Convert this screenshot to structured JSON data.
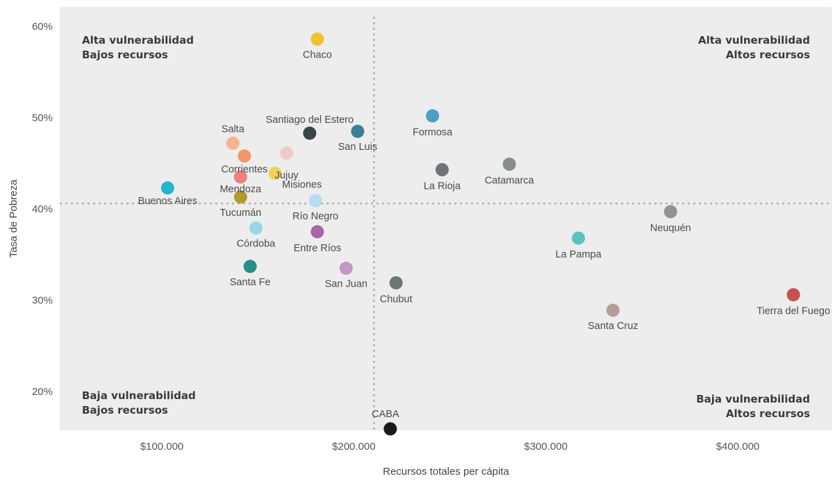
{
  "chart_data": {
    "type": "scatter",
    "xlabel": "Recursos totales per cápita",
    "ylabel": "Tasa de Pobreza",
    "xlim": [
      50000,
      450000
    ],
    "ylim": [
      15,
      62
    ],
    "x_ticks": [
      100000,
      200000,
      300000,
      400000
    ],
    "x_tick_labels": [
      "$100.000",
      "$200.000",
      "$300.000",
      "$400.000"
    ],
    "y_ticks": [
      20,
      30,
      40,
      50,
      60
    ],
    "y_tick_labels": [
      "20%",
      "30%",
      "40%",
      "50%",
      "60%"
    ],
    "grid": false,
    "reference_lines": {
      "x": 210500,
      "y": 40.6
    },
    "quadrant_labels": {
      "top_left": [
        "Alta vulnerabilidad",
        "Bajos recursos"
      ],
      "top_right": [
        "Alta vulnerabilidad",
        "Altos recursos"
      ],
      "bottom_left": [
        "Baja vulnerabilidad",
        "Bajos recursos"
      ],
      "bottom_right": [
        "Baja vulnerabilidad",
        "Altos recursos"
      ]
    },
    "points": [
      {
        "name": "Chaco",
        "x": 181000,
        "y": 58.6,
        "color": "#f2c12e"
      },
      {
        "name": "Santiago del Estero",
        "x": 177000,
        "y": 48.3,
        "color": "#3b4446"
      },
      {
        "name": "San Luis",
        "x": 202000,
        "y": 48.5,
        "color": "#3b7f99"
      },
      {
        "name": "Formosa",
        "x": 241000,
        "y": 50.2,
        "color": "#4b9fc4"
      },
      {
        "name": "Salta",
        "x": 137000,
        "y": 47.2,
        "color": "#f5b393"
      },
      {
        "name": "Corrientes",
        "x": 143000,
        "y": 45.8,
        "color": "#f3956a"
      },
      {
        "name": "Jujuy",
        "x": 165000,
        "y": 46.1,
        "color": "#efcaca"
      },
      {
        "name": "Misiones",
        "x": 159000,
        "y": 43.9,
        "color": "#f3d05a"
      },
      {
        "name": "Mendoza",
        "x": 141000,
        "y": 43.5,
        "color": "#f08080"
      },
      {
        "name": "La Rioja",
        "x": 246000,
        "y": 44.3,
        "color": "#6e7577"
      },
      {
        "name": "Catamarca",
        "x": 281000,
        "y": 44.9,
        "color": "#878d8e"
      },
      {
        "name": "Buenos Aires",
        "x": 103000,
        "y": 42.3,
        "color": "#24b6d1"
      },
      {
        "name": "Tucumán",
        "x": 141000,
        "y": 41.3,
        "color": "#b39a2d"
      },
      {
        "name": "Río Negro",
        "x": 180000,
        "y": 40.9,
        "color": "#b5dcf0"
      },
      {
        "name": "Neuquén",
        "x": 365000,
        "y": 39.7,
        "color": "#8f9596"
      },
      {
        "name": "Córdoba",
        "x": 149000,
        "y": 37.9,
        "color": "#96d6ea"
      },
      {
        "name": "Entre Ríos",
        "x": 181000,
        "y": 37.5,
        "color": "#a865a8"
      },
      {
        "name": "La Pampa",
        "x": 317000,
        "y": 36.8,
        "color": "#5bc2bd"
      },
      {
        "name": "Santa Fe",
        "x": 146000,
        "y": 33.7,
        "color": "#2a8f86"
      },
      {
        "name": "San Juan",
        "x": 196000,
        "y": 33.5,
        "color": "#c497c7"
      },
      {
        "name": "Chubut",
        "x": 222000,
        "y": 31.9,
        "color": "#6e7577"
      },
      {
        "name": "Tierra del Fuego",
        "x": 429000,
        "y": 30.6,
        "color": "#c9504f"
      },
      {
        "name": "Santa Cruz",
        "x": 335000,
        "y": 28.9,
        "color": "#b59d9a"
      },
      {
        "name": "CABA",
        "x": 219000,
        "y": 15.9,
        "color": "#1a1a1a"
      }
    ]
  }
}
